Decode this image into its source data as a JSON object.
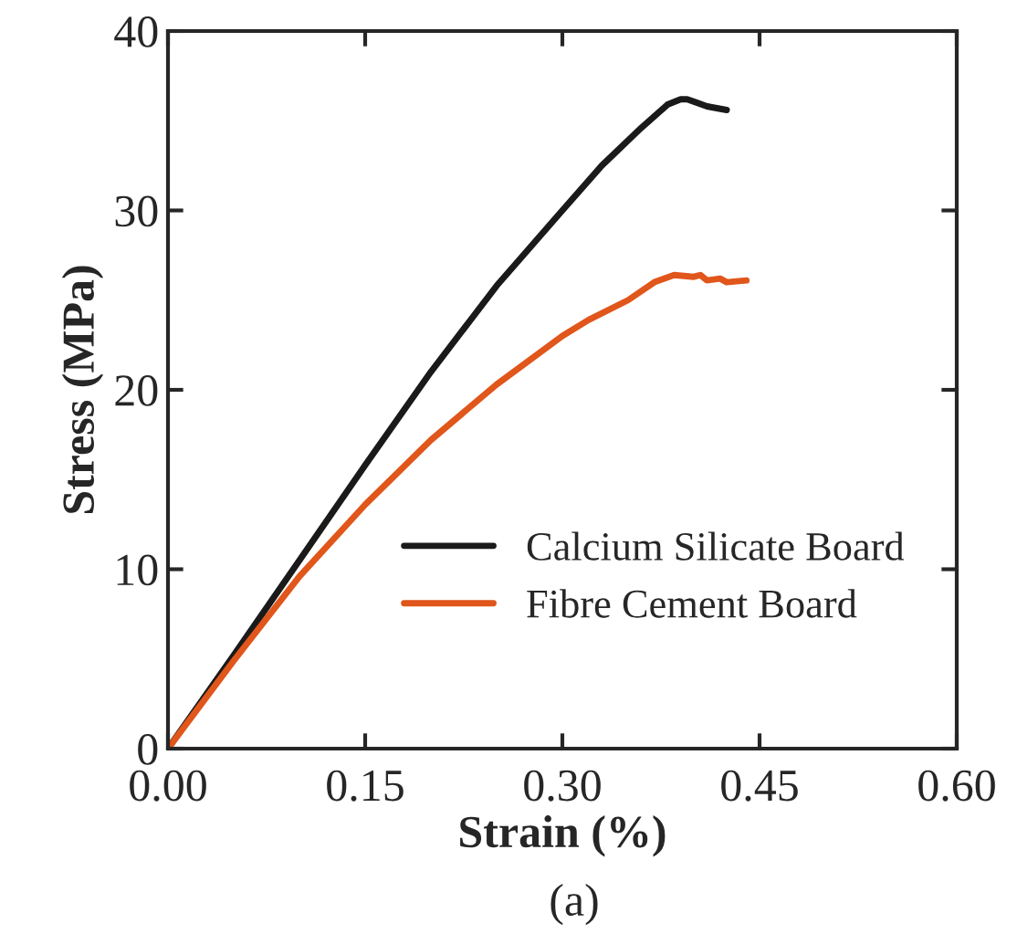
{
  "chart_data": {
    "type": "line",
    "xlabel": "Strain (%)",
    "ylabel": "Stress (MPa)",
    "annotations": [
      "(a)"
    ],
    "xlim": [
      0,
      0.6
    ],
    "xticks": [
      {
        "value": 0,
        "label": "0.00"
      },
      {
        "value": 0.15,
        "label": "0.15"
      },
      {
        "value": 0.3,
        "label": "0.30"
      },
      {
        "value": 0.45,
        "label": "0.45"
      },
      {
        "value": 0.6,
        "label": "0.60"
      }
    ],
    "ylim": [
      0,
      40
    ],
    "yticks": [
      0,
      10,
      20,
      30,
      40
    ],
    "grid": false,
    "legend": "bottom right",
    "marker": "none",
    "line_style": "solid",
    "series": [
      {
        "name": "Calcium Silicate Board",
        "color": "#1a1a1a",
        "x": [
          0,
          0.05,
          0.1,
          0.15,
          0.2,
          0.25,
          0.3,
          0.33,
          0.36,
          0.38,
          0.39,
          0.395,
          0.41,
          0.425
        ],
        "values": [
          0,
          5.2,
          10.5,
          15.8,
          21,
          25.8,
          30,
          32.5,
          34.6,
          35.9,
          36.2,
          36.2,
          35.8,
          35.6
        ]
      },
      {
        "name": "Fibre Cement Board",
        "color": "#e0561b",
        "x": [
          0,
          0.05,
          0.1,
          0.15,
          0.2,
          0.25,
          0.3,
          0.32,
          0.35,
          0.37,
          0.385,
          0.4,
          0.405,
          0.41,
          0.42,
          0.425,
          0.44
        ],
        "values": [
          0,
          4.9,
          9.6,
          13.6,
          17.2,
          20.3,
          23,
          23.9,
          25,
          26,
          26.4,
          26.3,
          26.4,
          26.1,
          26.2,
          26,
          26.1
        ]
      }
    ]
  }
}
